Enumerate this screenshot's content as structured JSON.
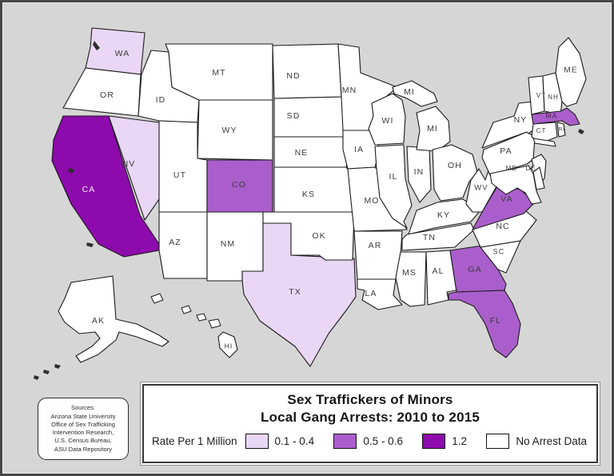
{
  "canvas": {
    "background": "#d6d6d6",
    "frame_color": "#474747"
  },
  "map": {
    "category_colors": {
      "none": "#ffffff",
      "low": "#ead7f5",
      "mid": "#aa5ecb",
      "high": "#8d0aac"
    },
    "default_label_color": "#3c3c3c",
    "states": [
      {
        "id": "WA",
        "label": "WA",
        "category": "low"
      },
      {
        "id": "OR",
        "label": "OR",
        "category": "none"
      },
      {
        "id": "CA",
        "label": "CA",
        "category": "high",
        "label_color": "#f3e9f7"
      },
      {
        "id": "NV",
        "label": "NV",
        "category": "low"
      },
      {
        "id": "ID",
        "label": "ID",
        "category": "none"
      },
      {
        "id": "MT",
        "label": "MT",
        "category": "none"
      },
      {
        "id": "WY",
        "label": "WY",
        "category": "none"
      },
      {
        "id": "UT",
        "label": "UT",
        "category": "none"
      },
      {
        "id": "CO",
        "label": "CO",
        "category": "mid"
      },
      {
        "id": "AZ",
        "label": "AZ",
        "category": "none"
      },
      {
        "id": "NM",
        "label": "NM",
        "category": "none"
      },
      {
        "id": "TX",
        "label": "TX",
        "category": "low"
      },
      {
        "id": "OK",
        "label": "OK",
        "category": "none"
      },
      {
        "id": "KS",
        "label": "KS",
        "category": "none"
      },
      {
        "id": "NE",
        "label": "NE",
        "category": "none"
      },
      {
        "id": "SD",
        "label": "SD",
        "category": "none"
      },
      {
        "id": "ND",
        "label": "ND",
        "category": "none"
      },
      {
        "id": "MN",
        "label": "MN",
        "category": "none"
      },
      {
        "id": "IA",
        "label": "IA",
        "category": "none"
      },
      {
        "id": "MO",
        "label": "MO",
        "category": "none"
      },
      {
        "id": "AR",
        "label": "AR",
        "category": "none"
      },
      {
        "id": "LA",
        "label": "LA",
        "category": "none"
      },
      {
        "id": "WI",
        "label": "WI",
        "category": "none"
      },
      {
        "id": "IL",
        "label": "IL",
        "category": "none"
      },
      {
        "id": "IN",
        "label": "IN",
        "category": "none"
      },
      {
        "id": "MI_UP",
        "label": "MI",
        "category": "none"
      },
      {
        "id": "MI",
        "label": "MI",
        "category": "none"
      },
      {
        "id": "OH",
        "label": "OH",
        "category": "none"
      },
      {
        "id": "KY",
        "label": "KY",
        "category": "none"
      },
      {
        "id": "TN",
        "label": "TN",
        "category": "none"
      },
      {
        "id": "MS",
        "label": "MS",
        "category": "none"
      },
      {
        "id": "AL",
        "label": "AL",
        "category": "none"
      },
      {
        "id": "GA",
        "label": "GA",
        "category": "mid"
      },
      {
        "id": "FL",
        "label": "FL",
        "category": "mid"
      },
      {
        "id": "SC",
        "label": "SC",
        "category": "none"
      },
      {
        "id": "NC",
        "label": "NC",
        "category": "none"
      },
      {
        "id": "VA",
        "label": "VA",
        "category": "mid"
      },
      {
        "id": "WV",
        "label": "WV",
        "category": "none"
      },
      {
        "id": "PA",
        "label": "PA",
        "category": "none"
      },
      {
        "id": "NY",
        "label": "NY",
        "category": "none"
      },
      {
        "id": "NJ",
        "label": "",
        "category": "none"
      },
      {
        "id": "MD",
        "label": "MD",
        "category": "none"
      },
      {
        "id": "DE",
        "label": "DE",
        "category": "none"
      },
      {
        "id": "VT",
        "label": "VT",
        "category": "none"
      },
      {
        "id": "NH",
        "label": "NH",
        "category": "none"
      },
      {
        "id": "ME",
        "label": "ME",
        "category": "none"
      },
      {
        "id": "MA",
        "label": "MA",
        "category": "mid",
        "label_color": "#42254d"
      },
      {
        "id": "CT",
        "label": "CT",
        "category": "none"
      },
      {
        "id": "RI",
        "label": "RI",
        "category": "none"
      },
      {
        "id": "AK",
        "label": "AK",
        "category": "none"
      },
      {
        "id": "HI",
        "label": "HI",
        "category": "none"
      }
    ]
  },
  "title_box": {
    "line1": "Sex Traffickers of Minors",
    "line2": "Local Gang Arrests: 2010 to 2015"
  },
  "legend": {
    "label": "Rate Per 1 Million",
    "items": [
      {
        "range": "0.1 - 0.4",
        "color": "#ead7f5"
      },
      {
        "range": "0.5 - 0.6",
        "color": "#aa5ecb"
      },
      {
        "range": "1.2",
        "color": "#8d0aac"
      },
      {
        "range": "No Arrest Data",
        "color": "#ffffff"
      }
    ]
  },
  "sources_box": {
    "lines": [
      "Sources:",
      "Arizona State University",
      "Office of Sex Trafficking",
      "Intervention Research,",
      "U.S. Census Bureau,",
      "ASU Data Repository"
    ]
  },
  "chart_data": {
    "type": "choropleth",
    "unit": "Rate Per 1 Million",
    "title": "Sex Traffickers of Minors — Local Gang Arrests: 2010 to 2015",
    "classes": [
      {
        "range": "0.1 - 0.4",
        "states": [
          "WA",
          "NV",
          "TX"
        ]
      },
      {
        "range": "0.5 - 0.6",
        "states": [
          "CO",
          "VA",
          "GA",
          "FL",
          "MA"
        ]
      },
      {
        "range": "1.2",
        "states": [
          "CA"
        ]
      },
      {
        "range": "No Arrest Data",
        "states": [
          "all remaining states"
        ]
      }
    ]
  }
}
